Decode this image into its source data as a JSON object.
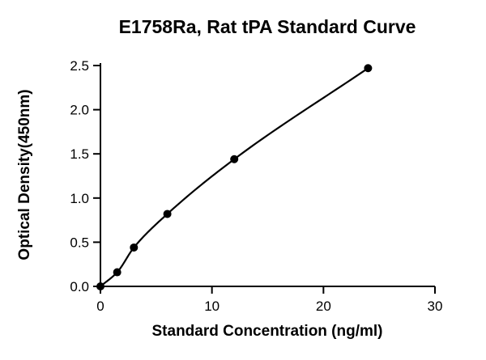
{
  "chart_data": {
    "type": "scatter",
    "title": "E1758Ra, Rat tPA Standard Curve",
    "xlabel": "Standard Concentration (ng/ml)",
    "ylabel": "Optical Density(450nm)",
    "xlim": [
      0,
      30
    ],
    "ylim": [
      0,
      2.5
    ],
    "x_ticks": [
      0,
      10,
      20,
      30
    ],
    "x_tick_labels": [
      "0",
      "10",
      "20",
      "30"
    ],
    "y_ticks": [
      0,
      0.5,
      1.0,
      1.5,
      2.0,
      2.5
    ],
    "y_tick_labels": [
      "0.0",
      "0.5",
      "1.0",
      "1.5",
      "2.0",
      "2.5"
    ],
    "grid": false,
    "series": [
      {
        "x": [
          0,
          1.5,
          3,
          6,
          12,
          24
        ],
        "y": [
          0.0,
          0.16,
          0.44,
          0.82,
          1.44,
          2.47
        ],
        "fit": "smooth-curve"
      }
    ]
  }
}
